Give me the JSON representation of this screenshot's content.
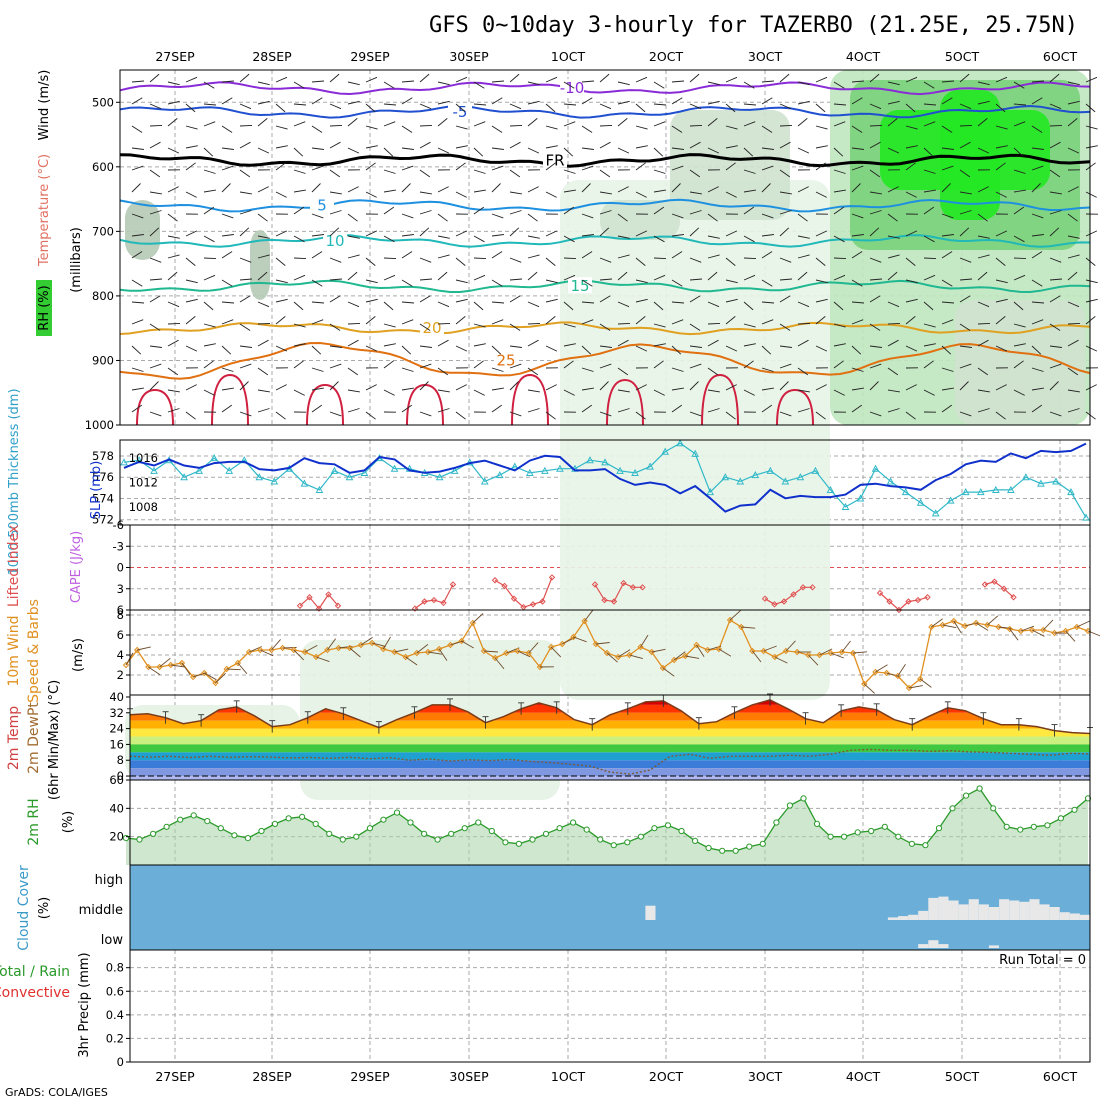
{
  "title": "GFS 0~10day 3-hourly for TAZERBO (21.25E, 25.75N)",
  "credit": "GrADS: COLA/IGES",
  "date_labels": [
    "27SEP",
    "28SEP",
    "29SEP",
    "30SEP",
    "1OCT",
    "2OCT",
    "3OCT",
    "4OCT",
    "5OCT",
    "6OCT"
  ],
  "colors": {
    "grid": "#aaaaaa",
    "slp": "#1030cc",
    "thickness": "#30b8c8",
    "lifted": "#e05050",
    "wind": "#e09020",
    "rh": "#2a9a2a",
    "cloud_bg": "#6bafd8",
    "cloud_bar": "#e8e8e8"
  },
  "chart_data": [
    {
      "name": "upper-air",
      "type": "contour",
      "ylabel_parts": [
        "RH (%)",
        "Temperature (°C)",
        "Wind (m/s)",
        "(millibars)"
      ],
      "yticks": [
        500,
        600,
        700,
        800,
        900,
        1000
      ],
      "ylim": [
        1000,
        450
      ],
      "isotherms": [
        {
          "label": "-10",
          "level": 478,
          "color": "#8a2bd8"
        },
        {
          "label": "-5",
          "level": 515,
          "color": "#2050d0"
        },
        {
          "label": "FR",
          "level": 590,
          "color": "#000000"
        },
        {
          "label": "5",
          "level": 660,
          "color": "#1e90e0"
        },
        {
          "label": "10",
          "level": 715,
          "color": "#20b8b8"
        },
        {
          "label": "15",
          "level": 785,
          "color": "#20b890"
        },
        {
          "label": "20",
          "level": 850,
          "color": "#e0a020"
        },
        {
          "label": "25",
          "level": 900,
          "color": "#e07010"
        }
      ]
    },
    {
      "name": "thickness-slp",
      "type": "line",
      "ylabel_left": "1000-500mb Thickness (dm)",
      "ylabel_right": "SLP (mb)",
      "yticks_thickness": [
        578,
        576,
        574,
        572
      ],
      "ylim_thickness": [
        571.5,
        579.5
      ],
      "yticks_slp": [
        1016,
        1012,
        1008
      ],
      "ylim_slp": [
        1005,
        1019
      ],
      "series": [
        {
          "name": "thickness",
          "values": [
            577.4,
            577.6,
            576.6,
            577.6,
            576.0,
            576.6,
            577.8,
            576.6,
            577.6,
            576.0,
            575.6,
            576.8,
            575.4,
            574.8,
            576.6,
            576.0,
            576.4,
            577.8,
            576.8,
            576.8,
            576.4,
            576.0,
            576.6,
            577.4,
            575.6,
            576.2,
            577.0,
            576.4,
            576.6,
            576.8,
            576.8,
            577.6,
            577.4,
            576.6,
            576.4,
            577.0,
            578.4,
            579.2,
            578.2,
            574.6,
            576.0,
            575.6,
            576.2,
            576.6,
            575.6,
            576.0,
            576.6,
            574.8,
            573.2,
            574.0,
            576.8,
            575.6,
            574.6,
            573.6,
            572.6,
            573.8,
            574.6,
            574.6,
            574.8,
            574.8,
            576.0,
            575.4,
            575.6,
            574.6,
            572.2
          ]
        },
        {
          "name": "slp",
          "values": [
            1014.4,
            1015.4,
            1014.8,
            1015.8,
            1014.8,
            1014.4,
            1015.2,
            1015.4,
            1015.4,
            1014.2,
            1014.0,
            1014.4,
            1016.0,
            1015.2,
            1015.0,
            1013.6,
            1014.0,
            1016.2,
            1015.8,
            1014.0,
            1013.6,
            1013.8,
            1014.4,
            1015.2,
            1015.6,
            1014.8,
            1014.0,
            1015.6,
            1016.4,
            1016.2,
            1014.0,
            1014.0,
            1014.2,
            1012.6,
            1011.6,
            1012.0,
            1011.6,
            1010.2,
            1011.4,
            1009.4,
            1007.2,
            1008.2,
            1008.4,
            1010.8,
            1009.4,
            1009.8,
            1009.6,
            1009.6,
            1010.0,
            1011.6,
            1011.8,
            1011.4,
            1011.2,
            1010.8,
            1012.4,
            1013.4,
            1015.0,
            1015.6,
            1015.4,
            1016.8,
            1016.0,
            1017.2,
            1017.0,
            1017.2,
            1018.4
          ]
        }
      ]
    },
    {
      "name": "lifted-cape",
      "type": "line",
      "ylabel_left": "Lifted Index",
      "ylabel_right": "CAPE (J/kg)",
      "yticks": [
        -6,
        -3,
        0,
        3,
        6
      ],
      "ylim": [
        -6,
        6
      ],
      "x_start_index": 0,
      "series": [
        {
          "name": "lifted_index",
          "values": [
            5.4,
            4.2,
            5.8,
            3.8,
            5.4,
            5.8,
            4.8,
            4.6,
            5.0,
            2.4,
            1.8,
            2.6,
            4.4,
            5.6,
            5.2,
            4.8,
            1.4,
            2.4,
            4.6,
            4.8,
            2.2,
            2.8,
            2.8,
            4.4,
            5.2,
            4.8,
            3.8,
            2.8,
            2.8,
            3.6,
            4.8,
            6.0,
            4.8,
            4.6,
            4.2,
            2.4,
            2.0,
            3.0,
            4.2
          ]
        }
      ]
    },
    {
      "name": "wind-10m",
      "type": "line",
      "ylabel_left": "10m Wind Speed & Barbs",
      "ylabel_right": "(m/s)",
      "yticks": [
        8,
        6,
        4,
        2
      ],
      "ylim": [
        0,
        8.5
      ],
      "series": [
        {
          "name": "wind_speed",
          "values": [
            3.0,
            4.5,
            2.8,
            2.8,
            3.0,
            3.2,
            1.8,
            2.2,
            1.2,
            2.6,
            3.2,
            4.3,
            4.5,
            4.5,
            4.7,
            4.5,
            4.3,
            3.8,
            4.5,
            4.7,
            4.7,
            5.0,
            5.2,
            4.6,
            4.3,
            3.8,
            4.2,
            4.3,
            4.6,
            5.0,
            5.4,
            7.2,
            4.4,
            3.7,
            4.2,
            4.4,
            4.2,
            2.8,
            4.8,
            5.1,
            5.8,
            7.4,
            5.1,
            4.2,
            3.8,
            4.0,
            4.8,
            4.3,
            2.7,
            3.5,
            3.9,
            5.0,
            4.5,
            4.6,
            7.5,
            6.8,
            4.4,
            4.4,
            3.8,
            4.4,
            4.3,
            4.0,
            4.0,
            4.2,
            4.3,
            4.2,
            1.1,
            2.3,
            2.2,
            1.9,
            0.7,
            1.6,
            6.8,
            7.0,
            7.4,
            6.9,
            7.2,
            7.0,
            6.8,
            6.6,
            6.4,
            6.5,
            6.5,
            6.2,
            6.4,
            6.8,
            6.4
          ]
        }
      ]
    },
    {
      "name": "temperature",
      "type": "area",
      "ylabel_parts": [
        "2m Temp",
        "2m DewPt",
        "(6hr Min/Max) (°C)"
      ],
      "yticks": [
        40,
        32,
        24,
        16,
        8,
        0
      ],
      "ylim": [
        -2,
        41
      ],
      "series": [
        {
          "name": "temp",
          "values": [
            31.0,
            31.5,
            29.5,
            26.5,
            28.0,
            33.5,
            35.0,
            30.5,
            25.0,
            26.0,
            29.5,
            34.0,
            31.5,
            28.0,
            24.5,
            28.5,
            32.0,
            36.0,
            36.0,
            32.5,
            27.0,
            30.0,
            34.0,
            37.0,
            34.5,
            28.5,
            26.0,
            31.0,
            34.0,
            37.5,
            38.0,
            33.0,
            26.5,
            27.5,
            32.0,
            36.0,
            38.5,
            34.0,
            29.0,
            27.0,
            33.0,
            35.0,
            33.5,
            28.5,
            26.0,
            30.5,
            34.5,
            33.0,
            29.0,
            26.0,
            26.0,
            25.0,
            23.0,
            22.0,
            21.5
          ]
        },
        {
          "name": "dewpoint",
          "values": [
            10.0,
            9.6,
            10.0,
            9.4,
            10.0,
            9.5,
            9.8,
            9.6,
            9.2,
            9.4,
            9.0,
            9.5,
            8.8,
            9.3,
            8.0,
            8.6,
            7.6,
            8.2,
            7.8,
            8.4,
            7.4,
            6.8,
            6.0,
            5.0,
            2.0,
            1.0,
            3.0,
            10.0,
            11.0,
            9.0,
            10.0,
            10.0,
            10.0,
            10.5,
            10.0,
            11.0,
            13.0,
            13.5,
            13.0,
            13.0,
            12.5,
            12.8,
            12.2,
            12.0,
            11.5,
            11.0,
            10.5,
            11.5,
            11.2
          ]
        }
      ]
    },
    {
      "name": "rh-2m",
      "type": "area",
      "ylabel_left": "2m RH",
      "ylabel_right": "(%)",
      "yticks": [
        60,
        40,
        20
      ],
      "ylim": [
        0,
        60
      ],
      "series": [
        {
          "name": "rh",
          "values": [
            19,
            18,
            22,
            27,
            32,
            35,
            31,
            26,
            21,
            19,
            24,
            29,
            33,
            34,
            29,
            22,
            18,
            20,
            26,
            32,
            37,
            30,
            22,
            18,
            22,
            26,
            30,
            24,
            16,
            15,
            18,
            22,
            26,
            30,
            25,
            18,
            14,
            16,
            20,
            26,
            28,
            24,
            17,
            12,
            10,
            10,
            13,
            15,
            30,
            42,
            47,
            29,
            20,
            20,
            23,
            24,
            27,
            20,
            15,
            14,
            26,
            40,
            49,
            54,
            40,
            27,
            25,
            27,
            28,
            33,
            39,
            47
          ]
        }
      ]
    },
    {
      "name": "cloud-cover",
      "type": "bar",
      "ylabel_left": "Cloud Cover",
      "ylabel_right": "(%)",
      "levels": [
        "high",
        "middle",
        "low"
      ],
      "middle_fraction": [
        0,
        0,
        0,
        0,
        0,
        0,
        0,
        0,
        0,
        0,
        0,
        0,
        0,
        0,
        0,
        0,
        0,
        0,
        0,
        0,
        0,
        0,
        0,
        0,
        0,
        0,
        0,
        0,
        0,
        0,
        0,
        0,
        0,
        0,
        0,
        0,
        0,
        0,
        0,
        0,
        0,
        0,
        0,
        0,
        0,
        0,
        0,
        0,
        0,
        0,
        0,
        0.55,
        0,
        0,
        0,
        0,
        0,
        0,
        0,
        0,
        0,
        0,
        0,
        0,
        0,
        0,
        0,
        0,
        0,
        0,
        0,
        0,
        0,
        0,
        0,
        0.1,
        0.15,
        0.2,
        0.35,
        0.85,
        0.9,
        0.75,
        0.6,
        0.8,
        0.6,
        0.5,
        0.8,
        0.75,
        0.7,
        0.8,
        0.6,
        0.5,
        0.3,
        0.25,
        0.2
      ],
      "low_fraction": [
        0,
        0,
        0,
        0,
        0,
        0,
        0,
        0,
        0,
        0,
        0,
        0,
        0,
        0,
        0,
        0,
        0,
        0,
        0,
        0,
        0,
        0,
        0,
        0,
        0,
        0,
        0,
        0,
        0,
        0,
        0,
        0,
        0,
        0,
        0,
        0,
        0,
        0,
        0,
        0,
        0,
        0,
        0,
        0,
        0,
        0,
        0,
        0,
        0,
        0,
        0,
        0,
        0,
        0,
        0,
        0,
        0,
        0,
        0,
        0,
        0,
        0,
        0,
        0,
        0,
        0,
        0,
        0,
        0,
        0,
        0,
        0,
        0,
        0,
        0,
        0,
        0,
        0,
        0.15,
        0.3,
        0.15,
        0,
        0,
        0,
        0,
        0.1,
        0,
        0,
        0,
        0,
        0,
        0,
        0,
        0,
        0
      ]
    },
    {
      "name": "precip",
      "type": "bar",
      "ylabel_parts": [
        "Total / Rain",
        "Convective",
        "3hr Precip (mm)"
      ],
      "run_total": "Run Total = 0",
      "yticks": [
        0.8,
        0.6,
        0.4,
        0.2,
        0
      ],
      "ylim": [
        0,
        0.95
      ],
      "values": []
    }
  ]
}
